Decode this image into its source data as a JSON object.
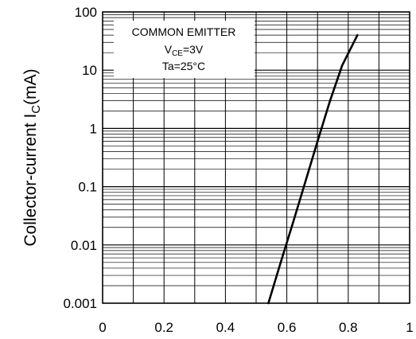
{
  "chart_data": {
    "type": "line",
    "title": "",
    "xlabel": "",
    "ylabel": "Collector-current I",
    "ylabel_sub": "C",
    "ylabel_unit": "(mA)",
    "xlim": [
      0,
      1
    ],
    "ylim": [
      0.001,
      100
    ],
    "yscale": "log",
    "grid": true,
    "x_ticks": [
      "0",
      "0.2",
      "0.4",
      "0.6",
      "0.8",
      "1"
    ],
    "y_ticks": [
      "0.001",
      "0.01",
      "0.1",
      "1",
      "10",
      "100"
    ],
    "annotation": {
      "line1": "COMMON EMITTER",
      "line2_main": "V",
      "line2_sub": "CE",
      "line2_rest": "=3V",
      "line3": "Ta=25°C"
    },
    "series": [
      {
        "x": [
          0.54,
          0.58,
          0.62,
          0.66,
          0.7,
          0.74,
          0.78,
          0.83
        ],
        "y": [
          0.001,
          0.005,
          0.024,
          0.12,
          0.6,
          2.9,
          12,
          40
        ]
      }
    ]
  }
}
